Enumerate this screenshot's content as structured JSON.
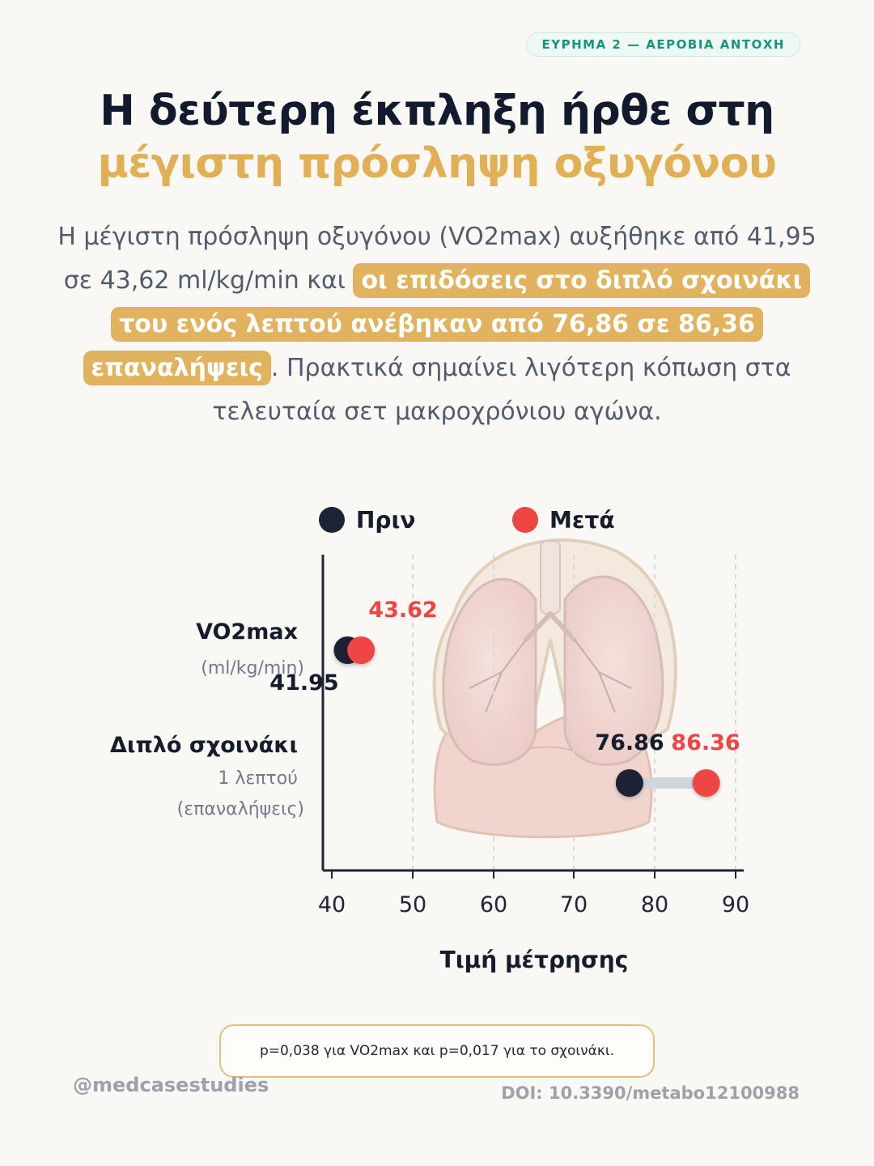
{
  "badge": "ΕΥΡΗΜΑ 2 — ΑΕΡΟΒΙΑ ΑΝΤΟΧΗ",
  "title": {
    "line1": "Η δεύτερη έκπληξη ήρθε στη",
    "line2": "μέγιστη πρόσληψη οξυγόνου"
  },
  "paragraph": {
    "part1": "Η μέγιστη πρόσληψη οξυγόνου (VO2max) αυξήθηκε από 41,95 σε 43,62 ml/kg/min και ",
    "highlight": "οι επιδόσεις στο διπλό σχοινάκι του ενός λεπτού ανέβηκαν από 76,86 σε 86,36 επαναλήψεις",
    "part2": ". Πρακτικά σημαίνει λιγότερη κόπωση στα τελευταία σετ μακροχρόνιου αγώνα."
  },
  "legend": {
    "before": "Πριν",
    "after": "Μετά"
  },
  "chart_data": {
    "type": "dumbbell",
    "xlabel": "Τιμή μέτρησης",
    "xlim": [
      40,
      90
    ],
    "xticks": [
      40,
      50,
      60,
      70,
      80,
      90
    ],
    "grid": "vertical dashed",
    "series": [
      {
        "name": "Πριν",
        "color": "#1b2336",
        "values": [
          41.95,
          76.86
        ]
      },
      {
        "name": "Μετά",
        "color": "#ef4444",
        "values": [
          43.62,
          86.36
        ]
      }
    ],
    "categories": [
      {
        "label": "VO2max",
        "sublabel": [
          "(ml/kg/min)"
        ],
        "before": 41.95,
        "after": 43.62
      },
      {
        "label": "Διπλό σχοινάκι",
        "sublabel": [
          "1 λεπτού",
          "(επαναλήψεις)"
        ],
        "before": 76.86,
        "after": 86.36
      }
    ],
    "value_labels": {
      "before": [
        "41.95",
        "76.86"
      ],
      "after": [
        "43.62",
        "86.36"
      ]
    }
  },
  "note": "p=0,038 για VO2max και p=0,017 για το σχοινάκι.",
  "handle": "@medcasestudies",
  "doi": "DOI: 10.3390/metabo12100988",
  "colors": {
    "accent": "#e1b35e",
    "before": "#1b2336",
    "after": "#ef4444",
    "badge_text": "#17957b"
  }
}
